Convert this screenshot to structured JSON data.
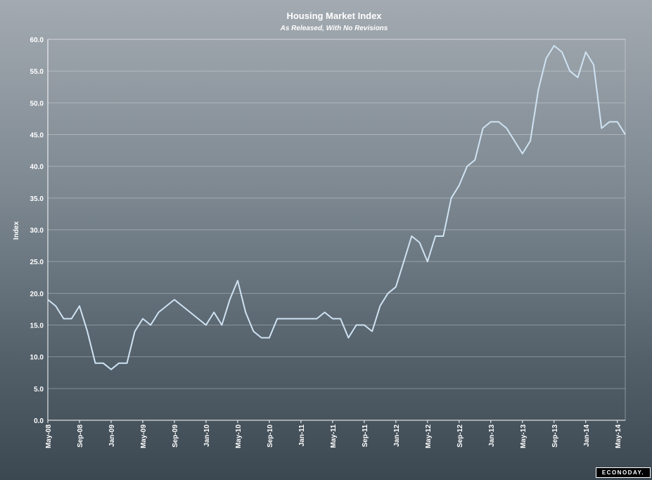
{
  "chart_data": {
    "type": "line",
    "title": "Housing Market Index",
    "subtitle": "As Released, With No Revisions",
    "ylabel": "Index",
    "xlabel": "",
    "ylim": [
      0,
      60
    ],
    "yticks": [
      "0.0",
      "5.0",
      "10.0",
      "15.0",
      "20.0",
      "25.0",
      "30.0",
      "35.0",
      "40.0",
      "45.0",
      "50.0",
      "55.0",
      "60.0"
    ],
    "xticks": [
      "May-08",
      "Sep-08",
      "Jan-09",
      "May-09",
      "Sep-09",
      "Jan-10",
      "May-10",
      "Sep-10",
      "Jan-11",
      "May-11",
      "Sep-11",
      "Jan-12",
      "May-12",
      "Sep-12",
      "Jan-13",
      "May-13",
      "Sep-13",
      "Jan-14",
      "May-14"
    ],
    "grid": true,
    "line_color": "#cfe3f3",
    "series": [
      {
        "values": [
          19,
          18,
          16,
          16,
          18,
          14,
          9,
          9,
          8,
          9,
          9,
          14,
          16,
          15,
          17,
          18,
          19,
          18,
          17,
          16,
          15,
          17,
          15,
          19,
          22,
          17,
          14,
          13,
          13,
          16,
          16,
          16,
          16,
          16,
          16,
          17,
          16,
          16,
          13,
          15,
          15,
          14,
          18,
          20,
          21,
          25,
          29,
          28,
          25,
          29,
          29,
          35,
          37,
          40,
          41,
          46,
          47,
          47,
          46,
          44,
          42,
          44,
          52,
          57,
          59,
          58,
          55,
          54,
          58,
          56,
          46,
          47,
          47,
          45
        ]
      }
    ]
  },
  "logo_text": "ECONODAY."
}
